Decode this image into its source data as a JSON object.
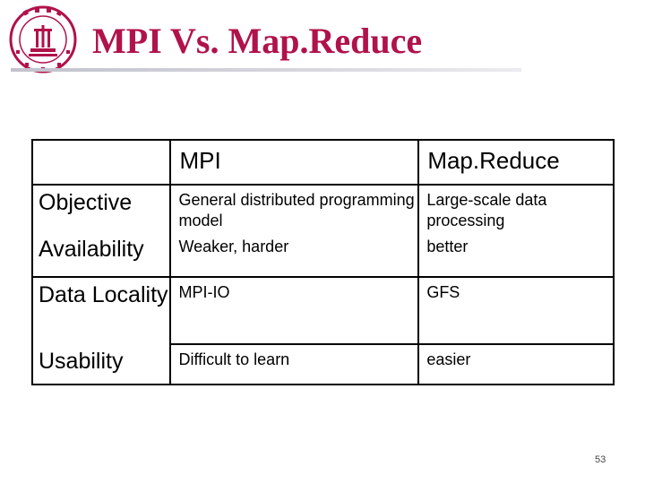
{
  "slide": {
    "title": "MPI Vs. Map.Reduce",
    "page_number": "53",
    "accent_color": "#b0124a"
  },
  "logo": {
    "icon": "university-seal-icon"
  },
  "table": {
    "headers": [
      "",
      "MPI",
      "Map.Reduce"
    ],
    "rows": [
      {
        "label": "Objective",
        "mpi": "General distributed programming model",
        "mapreduce": "Large-scale data processing"
      },
      {
        "label": "Availability",
        "mpi": "Weaker, harder",
        "mapreduce": "better"
      },
      {
        "label": "Data Locality",
        "mpi": "MPI-IO",
        "mapreduce": "GFS"
      },
      {
        "label": "Usability",
        "mpi": "Difficult to learn",
        "mapreduce": "easier"
      }
    ]
  }
}
